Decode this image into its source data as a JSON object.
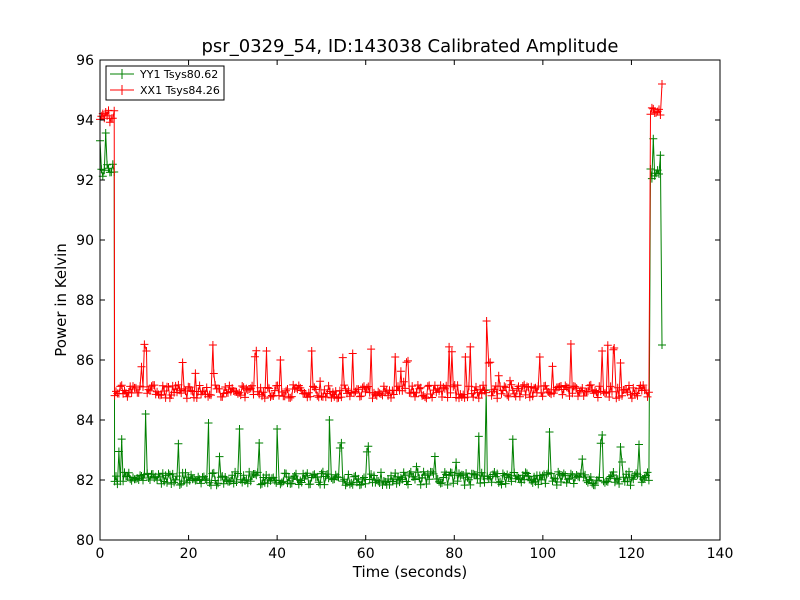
{
  "chart_data": {
    "type": "line",
    "title": "psr_0329_54, ID:143038 Calibrated Amplitude",
    "xlabel": "Time (seconds)",
    "ylabel": "Power in Kelvin",
    "xlim": [
      0,
      140
    ],
    "ylim": [
      80,
      96
    ],
    "xticks": [
      0,
      20,
      40,
      60,
      80,
      100,
      120,
      140
    ],
    "yticks": [
      80,
      82,
      84,
      86,
      88,
      90,
      92,
      94,
      96
    ],
    "legend_position": "top-left",
    "series": [
      {
        "name": "YY1 Tsys80.62",
        "color": "#008000",
        "marker": "+",
        "segments": [
          {
            "x_start": 0,
            "x_end": 3.2,
            "level": 92.3
          },
          {
            "x_start": 3.3,
            "x_end": 124.2,
            "level": 82.05
          },
          {
            "x_start": 124.3,
            "x_end": 127.0,
            "level": 92.15
          }
        ],
        "spikes": [
          [
            10.3,
            84.2
          ],
          [
            24.5,
            83.9
          ],
          [
            31.5,
            83.7
          ],
          [
            40.0,
            83.7
          ],
          [
            51.8,
            84.0
          ],
          [
            87.2,
            85.0
          ],
          [
            101.5,
            83.6
          ],
          [
            113.4,
            83.5
          ],
          [
            126.9,
            86.5
          ]
        ]
      },
      {
        "name": "XX1 Tsys84.26",
        "color": "#ff0000",
        "marker": "+",
        "segments": [
          {
            "x_start": 0,
            "x_end": 3.2,
            "level": 94.1
          },
          {
            "x_start": 3.3,
            "x_end": 124.2,
            "level": 84.95
          },
          {
            "x_start": 124.3,
            "x_end": 127.0,
            "level": 94.35
          }
        ],
        "spikes": [
          [
            10.5,
            86.3
          ],
          [
            25.5,
            86.5
          ],
          [
            37.6,
            86.3
          ],
          [
            47.8,
            86.3
          ],
          [
            82.5,
            86.1
          ],
          [
            87.3,
            87.3
          ],
          [
            99.3,
            86.1
          ],
          [
            116.1,
            86.4
          ],
          [
            126.9,
            95.2
          ]
        ]
      }
    ]
  }
}
